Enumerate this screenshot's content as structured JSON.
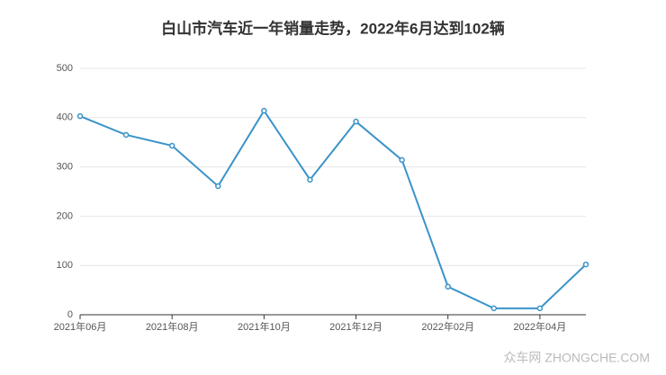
{
  "chart_data": {
    "type": "line",
    "title": "白山市汽车近一年销量走势，2022年6月达到102辆",
    "categories": [
      "2021年06月",
      null,
      "2021年08月",
      null,
      "2021年10月",
      null,
      "2021年12月",
      null,
      "2022年02月",
      null,
      "2022年04月",
      null
    ],
    "series": [
      {
        "name": "销量",
        "color": "#3a93c9",
        "values": [
          403,
          365,
          343,
          261,
          414,
          274,
          392,
          314,
          57,
          13,
          13,
          102
        ]
      }
    ],
    "ylim": [
      0,
      500
    ],
    "yticks": [
      0,
      100,
      200,
      300,
      400,
      500
    ],
    "grid": true
  },
  "watermark": "众车网 ZHONGCHE.COM"
}
